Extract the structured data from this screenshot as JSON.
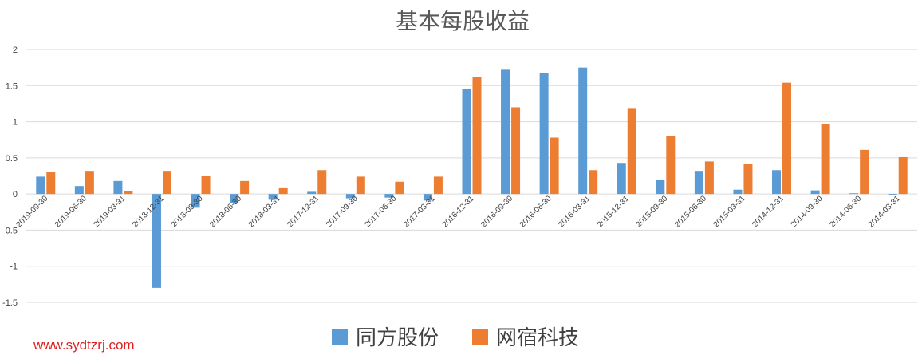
{
  "chart_data": {
    "type": "bar",
    "title": "基本每股收益",
    "categories": [
      "2019-09-30",
      "2019-06-30",
      "2019-03-31",
      "2018-12-31",
      "2018-09-30",
      "2018-06-30",
      "2018-03-31",
      "2017-12-31",
      "2017-09-30",
      "2017-06-30",
      "2017-03-31",
      "2016-12-31",
      "2016-09-30",
      "2016-06-30",
      "2016-03-31",
      "2015-12-31",
      "2015-09-30",
      "2015-06-30",
      "2015-03-31",
      "2014-12-31",
      "2014-09-30",
      "2014-06-30",
      "2014-03-31"
    ],
    "series": [
      {
        "name": "同方股份",
        "color": "#5b9bd5",
        "values": [
          0.24,
          0.11,
          0.18,
          -1.3,
          -0.19,
          -0.12,
          -0.08,
          0.03,
          -0.06,
          -0.05,
          -0.09,
          1.45,
          1.72,
          1.67,
          1.75,
          0.43,
          0.2,
          0.32,
          0.06,
          0.33,
          0.05,
          0.01,
          -0.02
        ]
      },
      {
        "name": "网宿科技",
        "color": "#ed7d31",
        "values": [
          0.31,
          0.32,
          0.04,
          0.32,
          0.25,
          0.18,
          0.08,
          0.33,
          0.24,
          0.17,
          0.24,
          1.62,
          1.2,
          0.78,
          0.33,
          1.19,
          0.8,
          0.45,
          0.41,
          1.54,
          0.97,
          0.61,
          0.51
        ]
      }
    ],
    "y_ticks": [
      "2",
      "1.5",
      "1",
      "0.5",
      "0",
      "-0.5",
      "-1",
      "-1.5"
    ],
    "ylim": [
      -1.5,
      2
    ],
    "grid": true,
    "legend_position": "bottom"
  },
  "watermark": "www.sydtzrj.com"
}
